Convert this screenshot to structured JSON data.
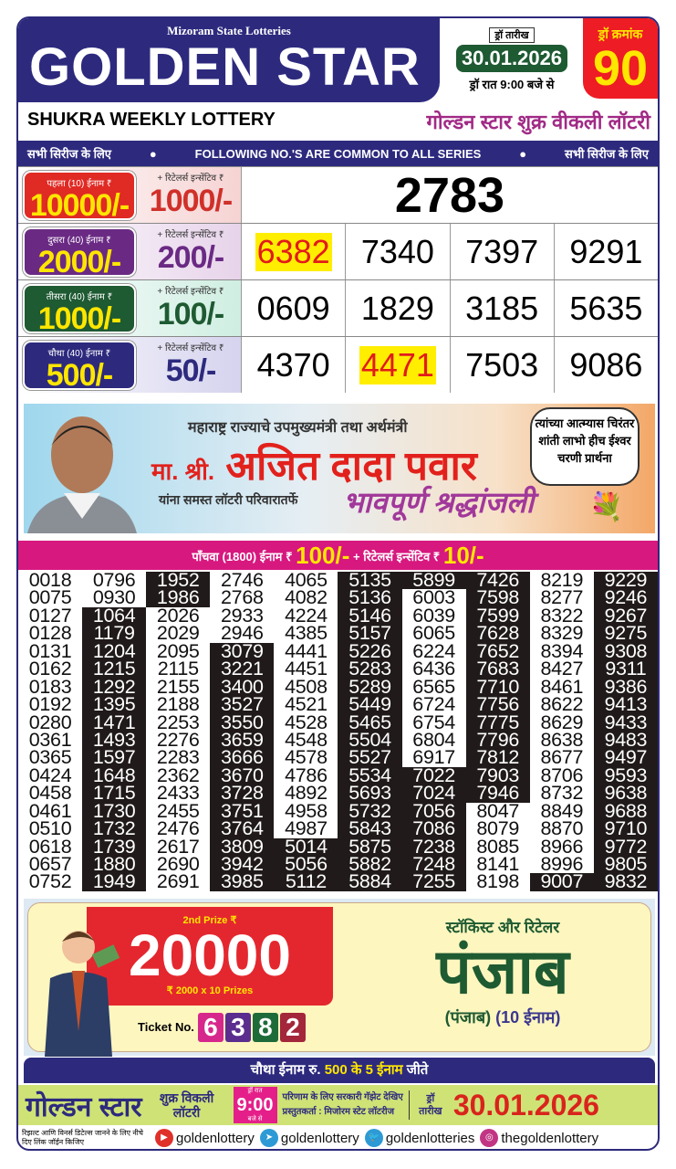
{
  "header": {
    "subtitle": "Mizoram State Lotteries",
    "title": "GOLDEN STAR",
    "draw_date_label": "ड्रॉ तारीख",
    "draw_date": "30.01.2026",
    "draw_time": "ड्रॉ रात 9:00 बजे से",
    "draw_no_label": "ड्रॉ क्रमांक",
    "draw_no": "90"
  },
  "lottery": {
    "name_en": "SHUKRA WEEKLY LOTTERY",
    "name_hi": "गोल्डन स्टार शुक्र वीकली लॉटरी"
  },
  "common_bar": {
    "left": "सभी सिरीज के लिए",
    "center": "FOLLOWING NO.'S ARE COMMON TO ALL SERIES",
    "right": "सभी सिरीज के लिए"
  },
  "prizes": [
    {
      "label": "पहला (10) ईनाम ₹",
      "amount": "10000/-",
      "retailer_label": "+ रिटेलर्स इन्सेंटिव ₹",
      "retailer": "1000/-",
      "numbers": [
        "2783"
      ],
      "highlight": [],
      "badge_color": "#e02a24",
      "ret_color": "#d0302a",
      "bg": "#f6d3d3"
    },
    {
      "label": "दुसरा (40) ईनाम ₹",
      "amount": "2000/-",
      "retailer_label": "+ रिटेलर्स इन्सेंटिव ₹",
      "retailer": "200/-",
      "numbers": [
        "6382",
        "7340",
        "7397",
        "9291"
      ],
      "highlight": [
        "6382"
      ],
      "badge_color": "#6a2a84",
      "ret_color": "#6a2a84",
      "bg": "#e7d3ea"
    },
    {
      "label": "तीसरा (40) ईनाम ₹",
      "amount": "1000/-",
      "retailer_label": "+ रिटेलर्स इन्सेंटिव ₹",
      "retailer": "100/-",
      "numbers": [
        "0609",
        "1829",
        "3185",
        "5635"
      ],
      "highlight": [],
      "badge_color": "#1e5a32",
      "ret_color": "#1e5a32",
      "bg": "#cfeee2"
    },
    {
      "label": "चौथा (40) ईनाम ₹",
      "amount": "500/-",
      "retailer_label": "+ रिटेलर्स इन्सेंटिव ₹",
      "retailer": "50/-",
      "numbers": [
        "4370",
        "4471",
        "7503",
        "9086"
      ],
      "highlight": [
        "4471"
      ],
      "badge_color": "#2d2a7e",
      "ret_color": "#2d2a7e",
      "bg": "#d5d3ee"
    }
  ],
  "banner": {
    "line1": "महाराष्ट्र राज्याचे उपमुख्यमंत्री तथा अर्थमंत्री",
    "prefix": "मा. श्री.",
    "name": "अजित दादा पवार",
    "line3": "यांना समस्त लॉटरी परिवारातर्फे",
    "tribute": "भावपूर्ण श्रद्धांजली",
    "bubble": "त्यांच्या आत्म्यास चिरंतर शांती लाभो हीच ईश्वर चरणी प्रार्थना"
  },
  "fifth_prize": {
    "label": "पाँचवा (1800) ईनाम ₹",
    "amount": "100/-",
    "retailer_label": "+ रिटेलर्स इन्सेंटिव ₹",
    "retailer": "10/-"
  },
  "grid": [
    [
      "0018",
      "0075",
      "0127",
      "0128",
      "0131",
      "0162",
      "0183",
      "0192",
      "0280",
      "0361",
      "0365",
      "0424",
      "0458",
      "0461",
      "0510",
      "0618",
      "0657",
      "0752"
    ],
    [
      "0796",
      "0930",
      "1064",
      "1179",
      "1204",
      "1215",
      "1292",
      "1395",
      "1471",
      "1493",
      "1597",
      "1648",
      "1715",
      "1730",
      "1732",
      "1739",
      "1880",
      "1949"
    ],
    [
      "1952",
      "1986",
      "2026",
      "2029",
      "2095",
      "2115",
      "2155",
      "2188",
      "2253",
      "2276",
      "2283",
      "2362",
      "2433",
      "2455",
      "2476",
      "2617",
      "2690",
      "2691"
    ],
    [
      "2746",
      "2768",
      "2933",
      "2946",
      "3079",
      "3221",
      "3400",
      "3527",
      "3550",
      "3659",
      "3666",
      "3670",
      "3728",
      "3751",
      "3764",
      "3809",
      "3942",
      "3985"
    ],
    [
      "4065",
      "4082",
      "4224",
      "4385",
      "4441",
      "4451",
      "4508",
      "4521",
      "4528",
      "4548",
      "4578",
      "4786",
      "4892",
      "4958",
      "4987",
      "5014",
      "5056",
      "5112"
    ],
    [
      "5135",
      "5136",
      "5146",
      "5157",
      "5226",
      "5283",
      "5289",
      "5449",
      "5465",
      "5504",
      "5527",
      "5534",
      "5693",
      "5732",
      "5843",
      "5875",
      "5882",
      "5884"
    ],
    [
      "5899",
      "6003",
      "6039",
      "6065",
      "6224",
      "6436",
      "6565",
      "6724",
      "6754",
      "6804",
      "6917",
      "7022",
      "7024",
      "7056",
      "7086",
      "7238",
      "7248",
      "7255"
    ],
    [
      "7426",
      "7598",
      "7599",
      "7628",
      "7652",
      "7683",
      "7710",
      "7756",
      "7775",
      "7796",
      "7812",
      "7903",
      "7946",
      "8047",
      "8079",
      "8085",
      "8141",
      "8198"
    ],
    [
      "8219",
      "8277",
      "8322",
      "8329",
      "8394",
      "8427",
      "8461",
      "8622",
      "8629",
      "8638",
      "8677",
      "8706",
      "8732",
      "8849",
      "8870",
      "8966",
      "8996",
      "9007"
    ],
    [
      "9229",
      "9246",
      "9267",
      "9275",
      "9308",
      "9311",
      "9386",
      "9413",
      "9433",
      "9483",
      "9497",
      "9593",
      "9638",
      "9688",
      "9710",
      "9772",
      "9805",
      "9832"
    ]
  ],
  "promo": {
    "label": "2nd Prize ₹",
    "amount": "20000",
    "sub": "₹ 2000  x 10 Prizes",
    "ticket_label": "Ticket No.",
    "ticket_digits": [
      "6",
      "3",
      "8",
      "2"
    ],
    "digit_colors": [
      "#d6288c",
      "#5b2d8e",
      "#1e6b3a",
      "#a3263a"
    ],
    "stockist": "स्टॉकिस्ट और रिटेलर",
    "state": "पंजाब",
    "state_paren": "(पंजाब)",
    "prizes_count": "(10 ईनाम)"
  },
  "fourth_bar": {
    "pre": "चौथा ईनाम रु.",
    "hl": "500 के 5 ईनाम",
    "post": "जीते"
  },
  "footer": {
    "brand": "गोल्डन स्टार",
    "weekly": "शुक्र विकली लॉटरी",
    "time_top": "ड्रॉ रात",
    "time": "9:00",
    "time_bottom": "बजे से",
    "info1": "परिणाम के लिए सरकारी गॅझेट देखिए",
    "info2": "प्रस्तुतकर्ता : मिजोरम स्टेट लॉटरीज",
    "date_label": "ड्रॉ तारीख",
    "date": "30.01.2026",
    "note": "रिझल्ट आणि विनर्स डिटेल्स जानने के लिए नीचे दिए लिंक जॉईन किजिए",
    "social": [
      {
        "icon": "youtube-icon",
        "handle": "goldenlottery",
        "color": "#e0302a"
      },
      {
        "icon": "telegram-icon",
        "handle": "goldenlottery",
        "color": "#2d9ad6"
      },
      {
        "icon": "twitter-icon",
        "handle": "goldenlotteries",
        "color": "#2d9ad6"
      },
      {
        "icon": "instagram-icon",
        "handle": "thegoldenlottery",
        "color": "#c13584"
      }
    ]
  }
}
